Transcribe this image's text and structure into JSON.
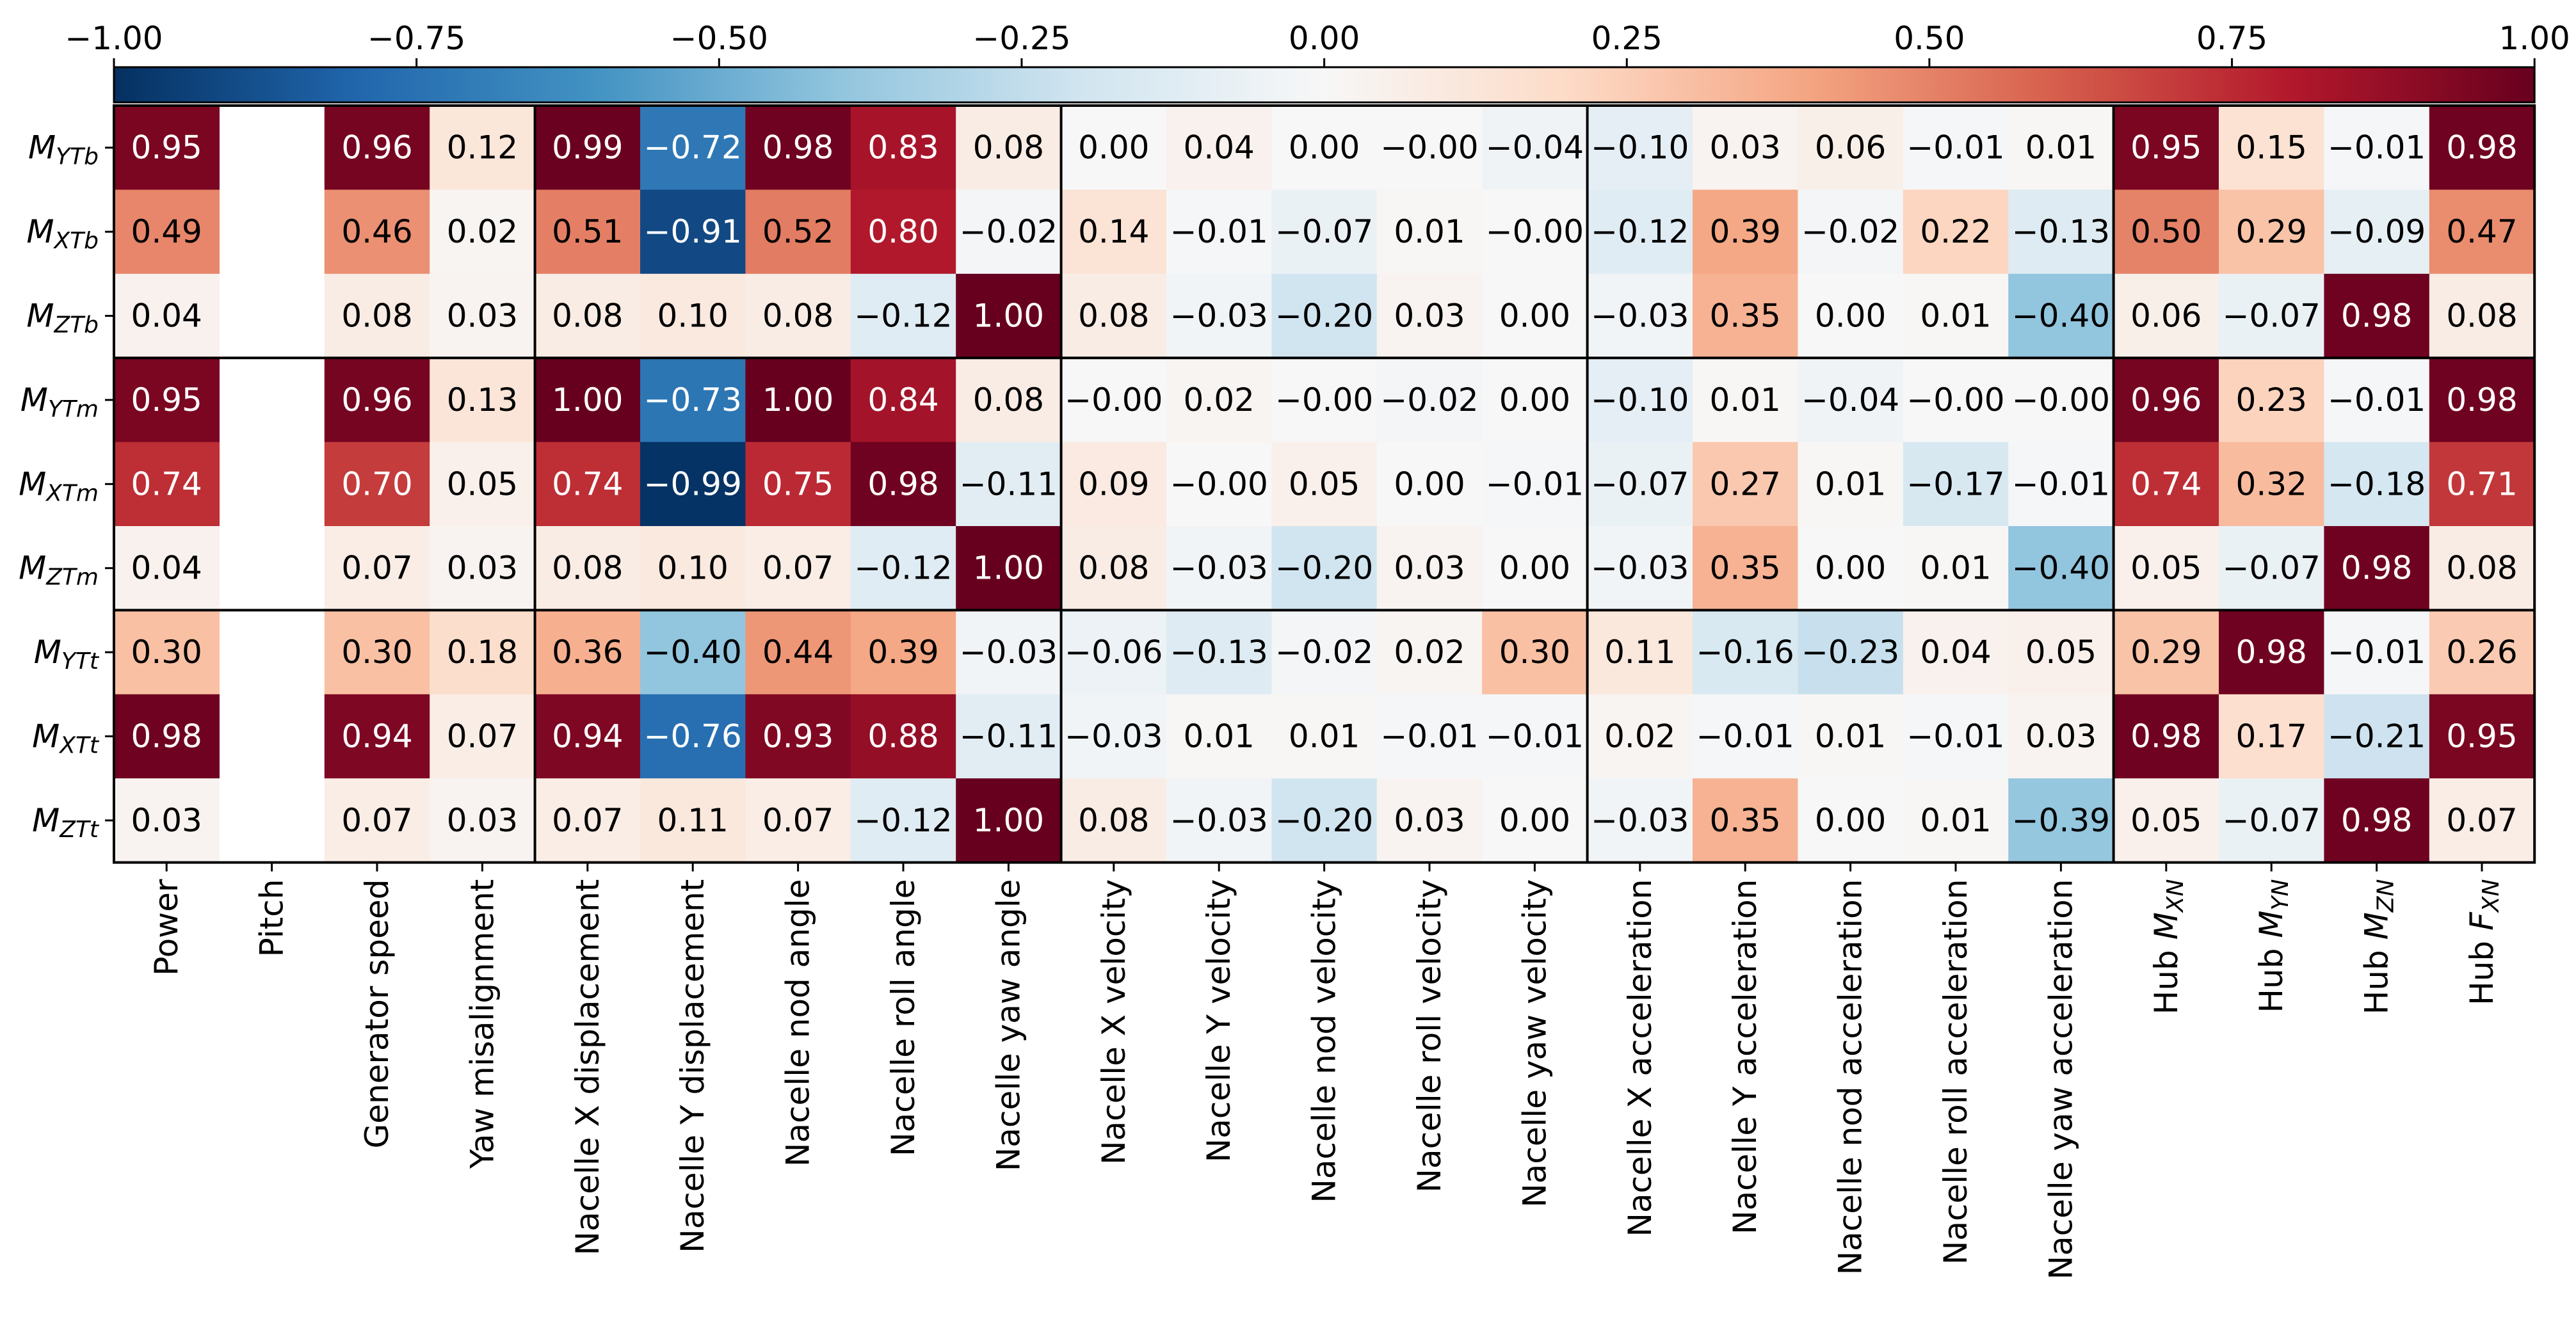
{
  "chart_data": {
    "type": "heatmap",
    "title": "",
    "colormap": "RdBu_r",
    "vmin": -1.0,
    "vmax": 1.0,
    "colorbar": {
      "location": "top",
      "ticks": [
        -1.0,
        -0.75,
        -0.5,
        -0.25,
        0.0,
        0.25,
        0.5,
        0.75,
        1.0
      ],
      "tick_labels": [
        "−1.00",
        "−0.75",
        "−0.50",
        "−0.25",
        "0.00",
        "0.25",
        "0.50",
        "0.75",
        "1.00"
      ]
    },
    "row_labels": [
      {
        "base": "M",
        "sub": "YTb"
      },
      {
        "base": "M",
        "sub": "XTb"
      },
      {
        "base": "M",
        "sub": "ZTb"
      },
      {
        "base": "M",
        "sub": "YTm"
      },
      {
        "base": "M",
        "sub": "XTm"
      },
      {
        "base": "M",
        "sub": "ZTm"
      },
      {
        "base": "M",
        "sub": "YTt"
      },
      {
        "base": "M",
        "sub": "XTt"
      },
      {
        "base": "M",
        "sub": "ZTt"
      }
    ],
    "column_labels": [
      {
        "text": "Power"
      },
      {
        "text": "Pitch"
      },
      {
        "text": "Generator speed"
      },
      {
        "text": "Yaw misalignment"
      },
      {
        "text": "Nacelle X displacement"
      },
      {
        "text": "Nacelle Y displacement"
      },
      {
        "text": "Nacelle nod angle"
      },
      {
        "text": "Nacelle roll angle"
      },
      {
        "text": "Nacelle yaw angle"
      },
      {
        "text": "Nacelle X velocity"
      },
      {
        "text": "Nacelle Y velocity"
      },
      {
        "text": "Nacelle nod velocity"
      },
      {
        "text": "Nacelle roll velocity"
      },
      {
        "text": "Nacelle yaw velocity"
      },
      {
        "text": "Nacelle X acceleration"
      },
      {
        "text": "Nacelle Y acceleration"
      },
      {
        "text": "Nacelle nod acceleration"
      },
      {
        "text": "Nacelle roll acceleration"
      },
      {
        "text": "Nacelle yaw acceleration"
      },
      {
        "text": "Hub ",
        "math": "M",
        "sub": "XN"
      },
      {
        "text": "Hub ",
        "math": "M",
        "sub": "YN"
      },
      {
        "text": "Hub ",
        "math": "M",
        "sub": "ZN"
      },
      {
        "text": "Hub ",
        "math": "F",
        "sub": "XN"
      }
    ],
    "values": [
      [
        "0.95",
        null,
        "0.96",
        "0.12",
        "0.99",
        "−0.72",
        "0.98",
        "0.83",
        "0.08",
        "0.00",
        "0.04",
        "0.00",
        "−0.00",
        "−0.04",
        "−0.10",
        "0.03",
        "0.06",
        "−0.01",
        "0.01",
        "0.95",
        "0.15",
        "−0.01",
        "0.98"
      ],
      [
        "0.49",
        null,
        "0.46",
        "0.02",
        "0.51",
        "−0.91",
        "0.52",
        "0.80",
        "−0.02",
        "0.14",
        "−0.01",
        "−0.07",
        "0.01",
        "−0.00",
        "−0.12",
        "0.39",
        "−0.02",
        "0.22",
        "−0.13",
        "0.50",
        "0.29",
        "−0.09",
        "0.47"
      ],
      [
        "0.04",
        null,
        "0.08",
        "0.03",
        "0.08",
        "0.10",
        "0.08",
        "−0.12",
        "1.00",
        "0.08",
        "−0.03",
        "−0.20",
        "0.03",
        "0.00",
        "−0.03",
        "0.35",
        "0.00",
        "0.01",
        "−0.40",
        "0.06",
        "−0.07",
        "0.98",
        "0.08"
      ],
      [
        "0.95",
        null,
        "0.96",
        "0.13",
        "1.00",
        "−0.73",
        "1.00",
        "0.84",
        "0.08",
        "−0.00",
        "0.02",
        "−0.00",
        "−0.02",
        "0.00",
        "−0.10",
        "0.01",
        "−0.04",
        "−0.00",
        "−0.00",
        "0.96",
        "0.23",
        "−0.01",
        "0.98"
      ],
      [
        "0.74",
        null,
        "0.70",
        "0.05",
        "0.74",
        "−0.99",
        "0.75",
        "0.98",
        "−0.11",
        "0.09",
        "−0.00",
        "0.05",
        "0.00",
        "−0.01",
        "−0.07",
        "0.27",
        "0.01",
        "−0.17",
        "−0.01",
        "0.74",
        "0.32",
        "−0.18",
        "0.71"
      ],
      [
        "0.04",
        null,
        "0.07",
        "0.03",
        "0.08",
        "0.10",
        "0.07",
        "−0.12",
        "1.00",
        "0.08",
        "−0.03",
        "−0.20",
        "0.03",
        "0.00",
        "−0.03",
        "0.35",
        "0.00",
        "0.01",
        "−0.40",
        "0.05",
        "−0.07",
        "0.98",
        "0.08"
      ],
      [
        "0.30",
        null,
        "0.30",
        "0.18",
        "0.36",
        "−0.40",
        "0.44",
        "0.39",
        "−0.03",
        "−0.06",
        "−0.13",
        "−0.02",
        "0.02",
        "0.30",
        "0.11",
        "−0.16",
        "−0.23",
        "0.04",
        "0.05",
        "0.29",
        "0.98",
        "−0.01",
        "0.26"
      ],
      [
        "0.98",
        null,
        "0.94",
        "0.07",
        "0.94",
        "−0.76",
        "0.93",
        "0.88",
        "−0.11",
        "−0.03",
        "0.01",
        "0.01",
        "−0.01",
        "−0.01",
        "0.02",
        "−0.01",
        "0.01",
        "−0.01",
        "0.03",
        "0.98",
        "0.17",
        "−0.21",
        "0.95"
      ],
      [
        "0.03",
        null,
        "0.07",
        "0.03",
        "0.07",
        "0.11",
        "0.07",
        "−0.12",
        "1.00",
        "0.08",
        "−0.03",
        "−0.20",
        "0.03",
        "0.00",
        "−0.03",
        "0.35",
        "0.00",
        "0.01",
        "−0.39",
        "0.05",
        "−0.07",
        "0.98",
        "0.07"
      ]
    ],
    "row_groups": [
      [
        0,
        3
      ],
      [
        3,
        6
      ],
      [
        6,
        9
      ]
    ],
    "column_groups": [
      [
        0,
        4
      ],
      [
        4,
        9
      ],
      [
        9,
        14
      ],
      [
        14,
        19
      ],
      [
        19,
        23
      ]
    ]
  }
}
